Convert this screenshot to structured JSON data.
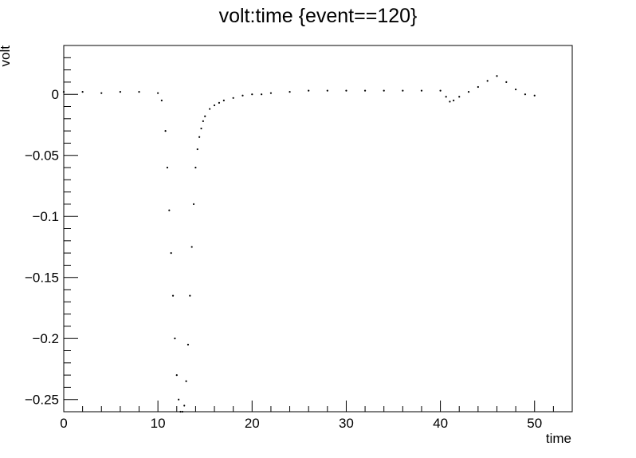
{
  "chart_data": {
    "type": "scatter",
    "title": "volt:time {event==120}",
    "xlabel": "time",
    "ylabel": "volt",
    "xlim": [
      0,
      54
    ],
    "ylim": [
      -0.26,
      0.04
    ],
    "grid": false,
    "legend": "none",
    "x_ticks": [
      {
        "value": 0,
        "label": "0"
      },
      {
        "value": 10,
        "label": "10"
      },
      {
        "value": 20,
        "label": "20"
      },
      {
        "value": 30,
        "label": "30"
      },
      {
        "value": 40,
        "label": "40"
      },
      {
        "value": 50,
        "label": "50"
      }
    ],
    "y_ticks": [
      {
        "value": 0,
        "label": "0"
      },
      {
        "value": -0.05,
        "label": "−0.05"
      },
      {
        "value": -0.1,
        "label": "−0.1"
      },
      {
        "value": -0.15,
        "label": "−0.15"
      },
      {
        "value": -0.2,
        "label": "−0.2"
      },
      {
        "value": -0.25,
        "label": "−0.25"
      }
    ],
    "series": [
      {
        "marker_color": "#000000",
        "x": [
          0,
          2,
          4,
          6,
          8,
          10,
          10.4,
          10.8,
          11.0,
          11.2,
          11.4,
          11.6,
          11.8,
          12.0,
          12.2,
          12.4,
          12.6,
          12.8,
          13.0,
          13.2,
          13.4,
          13.6,
          13.8,
          14.0,
          14.2,
          14.4,
          14.6,
          14.8,
          15.0,
          15.5,
          16.0,
          16.5,
          17.0,
          18.0,
          19.0,
          20.0,
          21.0,
          22.0,
          24.0,
          26.0,
          28.0,
          30.0,
          32.0,
          34.0,
          36.0,
          38.0,
          40.0,
          40.6,
          41.0,
          41.4,
          42.0,
          43.0,
          44.0,
          45.0,
          46.0,
          47.0,
          48.0,
          49.0,
          50.0
        ],
        "y": [
          0.002,
          0.002,
          0.001,
          0.002,
          0.002,
          0.001,
          -0.005,
          -0.03,
          -0.06,
          -0.095,
          -0.13,
          -0.165,
          -0.2,
          -0.23,
          -0.25,
          -0.26,
          -0.26,
          -0.255,
          -0.235,
          -0.205,
          -0.165,
          -0.125,
          -0.09,
          -0.06,
          -0.045,
          -0.035,
          -0.028,
          -0.022,
          -0.018,
          -0.012,
          -0.009,
          -0.007,
          -0.005,
          -0.003,
          -0.001,
          0.0,
          0.0,
          0.001,
          0.002,
          0.003,
          0.003,
          0.003,
          0.003,
          0.003,
          0.003,
          0.003,
          0.003,
          -0.002,
          -0.006,
          -0.005,
          -0.002,
          0.002,
          0.006,
          0.011,
          0.015,
          0.01,
          0.004,
          0.0,
          -0.001
        ]
      }
    ]
  }
}
